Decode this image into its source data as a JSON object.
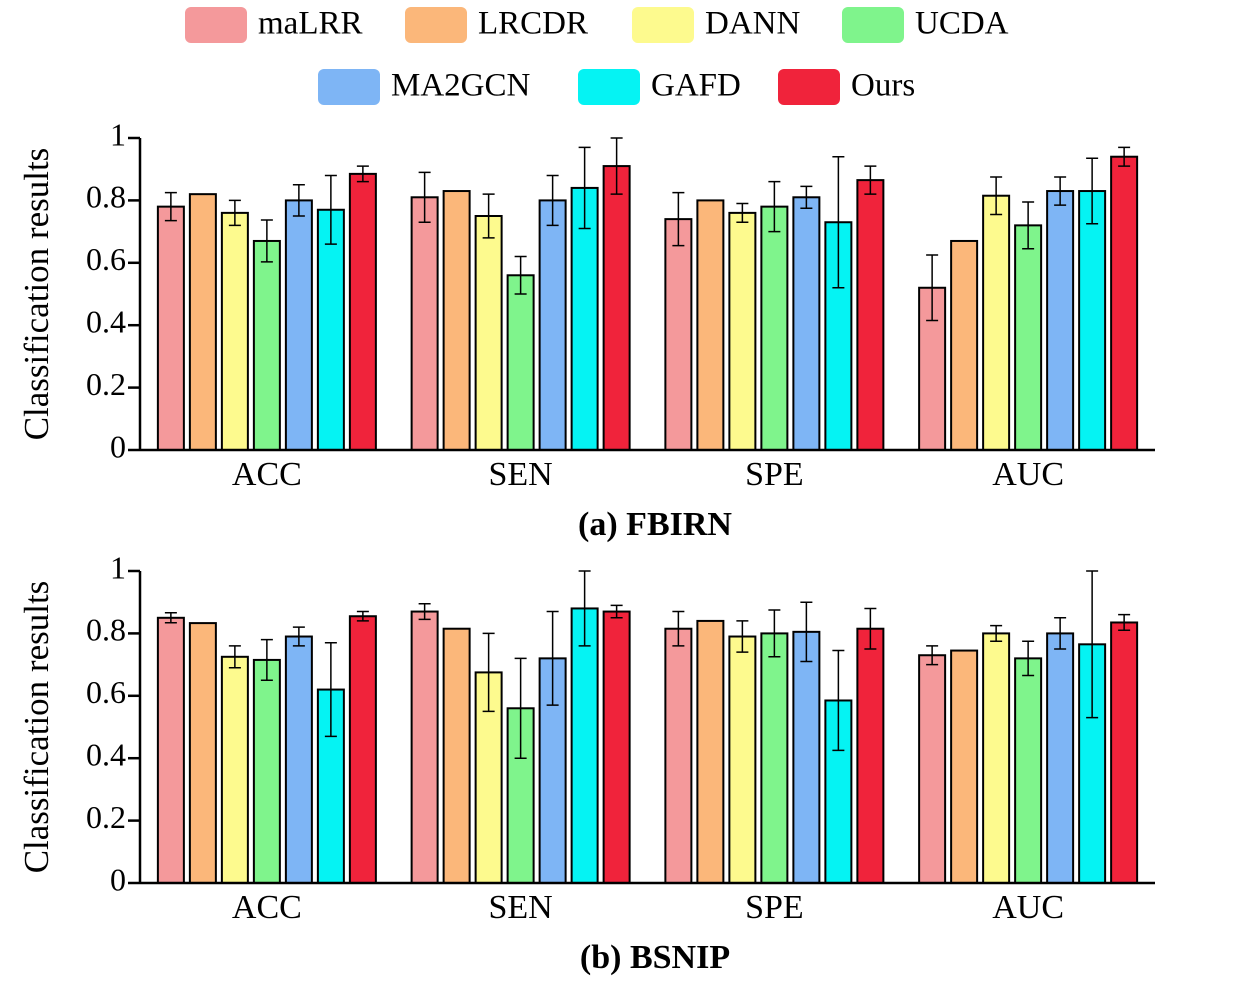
{
  "chart_data": [
    {
      "type": "bar",
      "title": "(a) FBIRN",
      "y_label": "Classification results",
      "categories": [
        "ACC",
        "SEN",
        "SPE",
        "AUC"
      ],
      "ylim": [
        0,
        1
      ],
      "yticks": [
        0,
        0.2,
        0.4,
        0.6,
        0.8,
        1
      ],
      "series": [
        {
          "name": "maLRR",
          "color": "#f4999b",
          "values": [
            0.78,
            0.81,
            0.74,
            0.52
          ],
          "errors": [
            0.045,
            0.08,
            0.085,
            0.105
          ]
        },
        {
          "name": "LRCDR",
          "color": "#fbb77a",
          "values": [
            0.82,
            0.83,
            0.8,
            0.67
          ]
        },
        {
          "name": "DANN",
          "color": "#fdfa8e",
          "values": [
            0.76,
            0.75,
            0.76,
            0.815
          ],
          "errors": [
            0.04,
            0.07,
            0.03,
            0.06
          ]
        },
        {
          "name": "UCDA",
          "color": "#7ff48c",
          "values": [
            0.67,
            0.56,
            0.78,
            0.72
          ],
          "errors": [
            0.067,
            0.06,
            0.08,
            0.075
          ]
        },
        {
          "name": "MA2GCN",
          "color": "#7eb5f5",
          "values": [
            0.8,
            0.8,
            0.81,
            0.83
          ],
          "errors": [
            0.05,
            0.08,
            0.035,
            0.045
          ]
        },
        {
          "name": "GAFD",
          "color": "#05f3f3",
          "values": [
            0.77,
            0.84,
            0.73,
            0.83
          ],
          "errors": [
            0.11,
            0.13,
            0.21,
            0.105
          ]
        },
        {
          "name": "Ours",
          "color": "#f0233b",
          "values": [
            0.885,
            0.91,
            0.865,
            0.94
          ],
          "errors": [
            0.025,
            0.09,
            0.045,
            0.03
          ]
        }
      ]
    },
    {
      "type": "bar",
      "title": "(b) BSNIP",
      "y_label": "Classification results",
      "categories": [
        "ACC",
        "SEN",
        "SPE",
        "AUC"
      ],
      "ylim": [
        0,
        1
      ],
      "yticks": [
        0,
        0.2,
        0.4,
        0.6,
        0.8,
        1
      ],
      "series": [
        {
          "color": "#f4999b",
          "values": [
            0.85,
            0.87,
            0.815,
            0.73
          ],
          "errors": [
            0.016,
            0.025,
            0.055,
            0.03
          ]
        },
        {
          "color": "#fbb77a",
          "values": [
            0.833,
            0.815,
            0.84,
            0.745
          ]
        },
        {
          "color": "#fdfa8e",
          "values": [
            0.725,
            0.675,
            0.79,
            0.8
          ],
          "errors": [
            0.035,
            0.125,
            0.05,
            0.025
          ]
        },
        {
          "color": "#7ff48c",
          "values": [
            0.715,
            0.56,
            0.8,
            0.72
          ],
          "errors": [
            0.065,
            0.16,
            0.075,
            0.055
          ]
        },
        {
          "color": "#7eb5f5",
          "values": [
            0.79,
            0.72,
            0.805,
            0.8
          ],
          "errors": [
            0.03,
            0.15,
            0.095,
            0.05
          ]
        },
        {
          "color": "#05f3f3",
          "values": [
            0.62,
            0.88,
            0.585,
            0.765
          ],
          "errors": [
            0.15,
            0.12,
            0.16,
            0.235
          ]
        },
        {
          "color": "#f0233b",
          "values": [
            0.855,
            0.87,
            0.815,
            0.835
          ],
          "errors": [
            0.015,
            0.02,
            0.065,
            0.025
          ]
        }
      ]
    }
  ]
}
